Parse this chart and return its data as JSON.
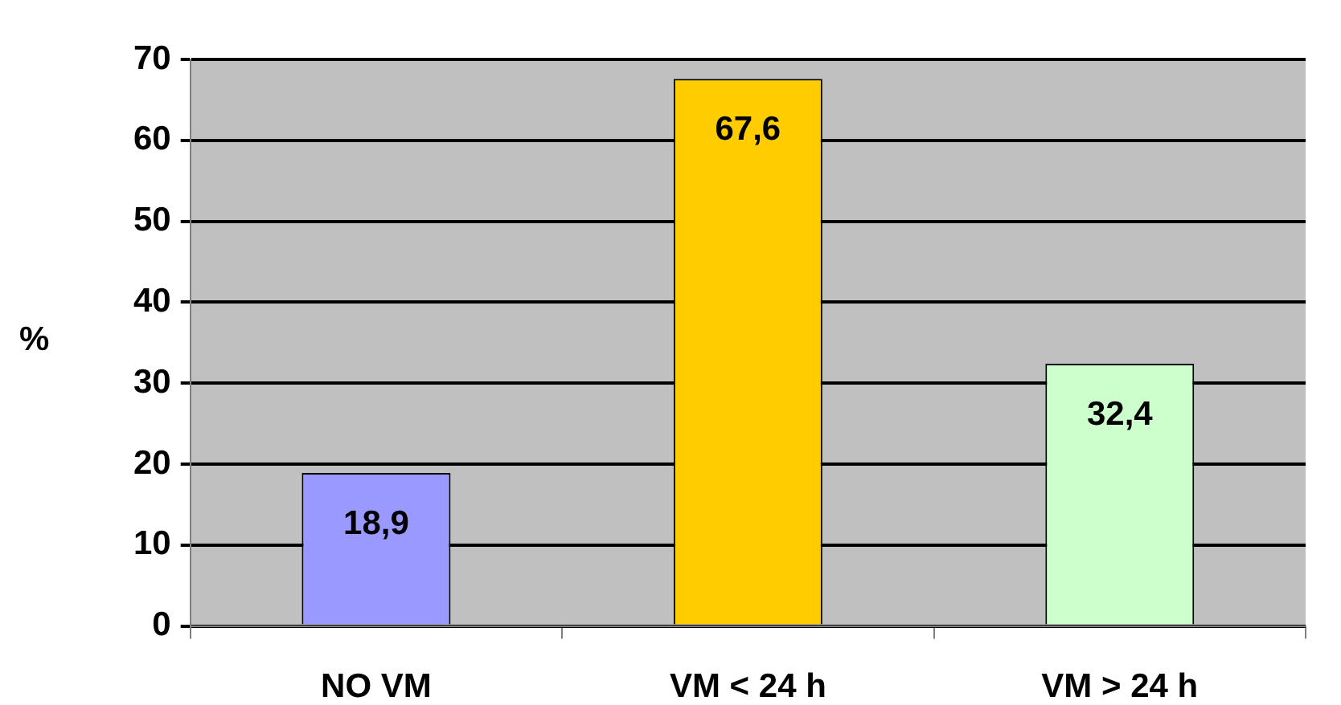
{
  "chart_data": {
    "type": "bar",
    "ylabel": "%",
    "categories": [
      "NO VM",
      "VM < 24 h",
      "VM > 24 h"
    ],
    "values": [
      18.9,
      67.6,
      32.4
    ],
    "colors": [
      "#9999ff",
      "#ffcc00",
      "#ccffcc"
    ],
    "value_labels": [
      "18,9",
      "67,6",
      "32,4"
    ],
    "ylim": [
      0,
      70
    ],
    "yticks": [
      0,
      10,
      20,
      30,
      40,
      50,
      60,
      70
    ],
    "grid": "y"
  }
}
